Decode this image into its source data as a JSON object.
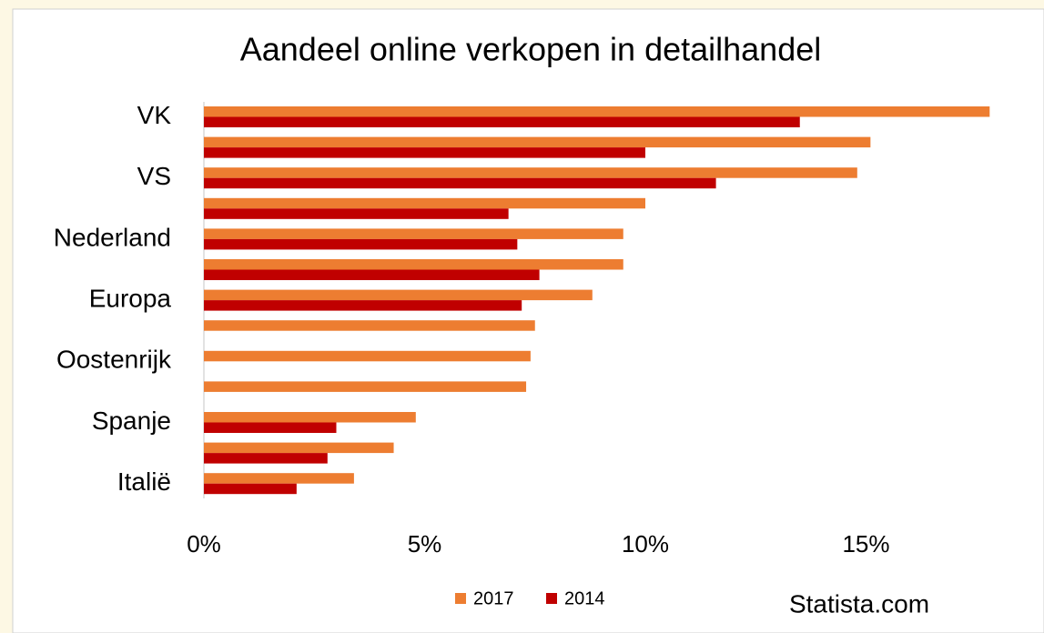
{
  "chart_data": {
    "type": "bar",
    "orientation": "horizontal",
    "title": "Aandeel online verkopen in detailhandel",
    "categories": [
      "VK",
      null,
      "VS",
      null,
      "Nederland",
      null,
      "Europa",
      null,
      "Oostenrijk",
      null,
      "Spanje",
      null,
      "Italië"
    ],
    "series": [
      {
        "name": "2017",
        "color": "#ed7d31",
        "values": [
          17.8,
          15.1,
          14.8,
          10.0,
          9.5,
          9.5,
          8.8,
          7.5,
          7.4,
          7.3,
          4.8,
          4.3,
          3.4
        ]
      },
      {
        "name": "2014",
        "color": "#c00000",
        "values": [
          13.5,
          10.0,
          11.6,
          6.9,
          7.1,
          7.6,
          7.2,
          null,
          null,
          null,
          3.0,
          2.8,
          2.1
        ]
      }
    ],
    "xlim": [
      0,
      18
    ],
    "xticks": [
      {
        "value": 0,
        "label": "0%"
      },
      {
        "value": 5,
        "label": "5%"
      },
      {
        "value": 10,
        "label": "10%"
      },
      {
        "value": 15,
        "label": "15%"
      }
    ],
    "source": "Statista.com"
  }
}
